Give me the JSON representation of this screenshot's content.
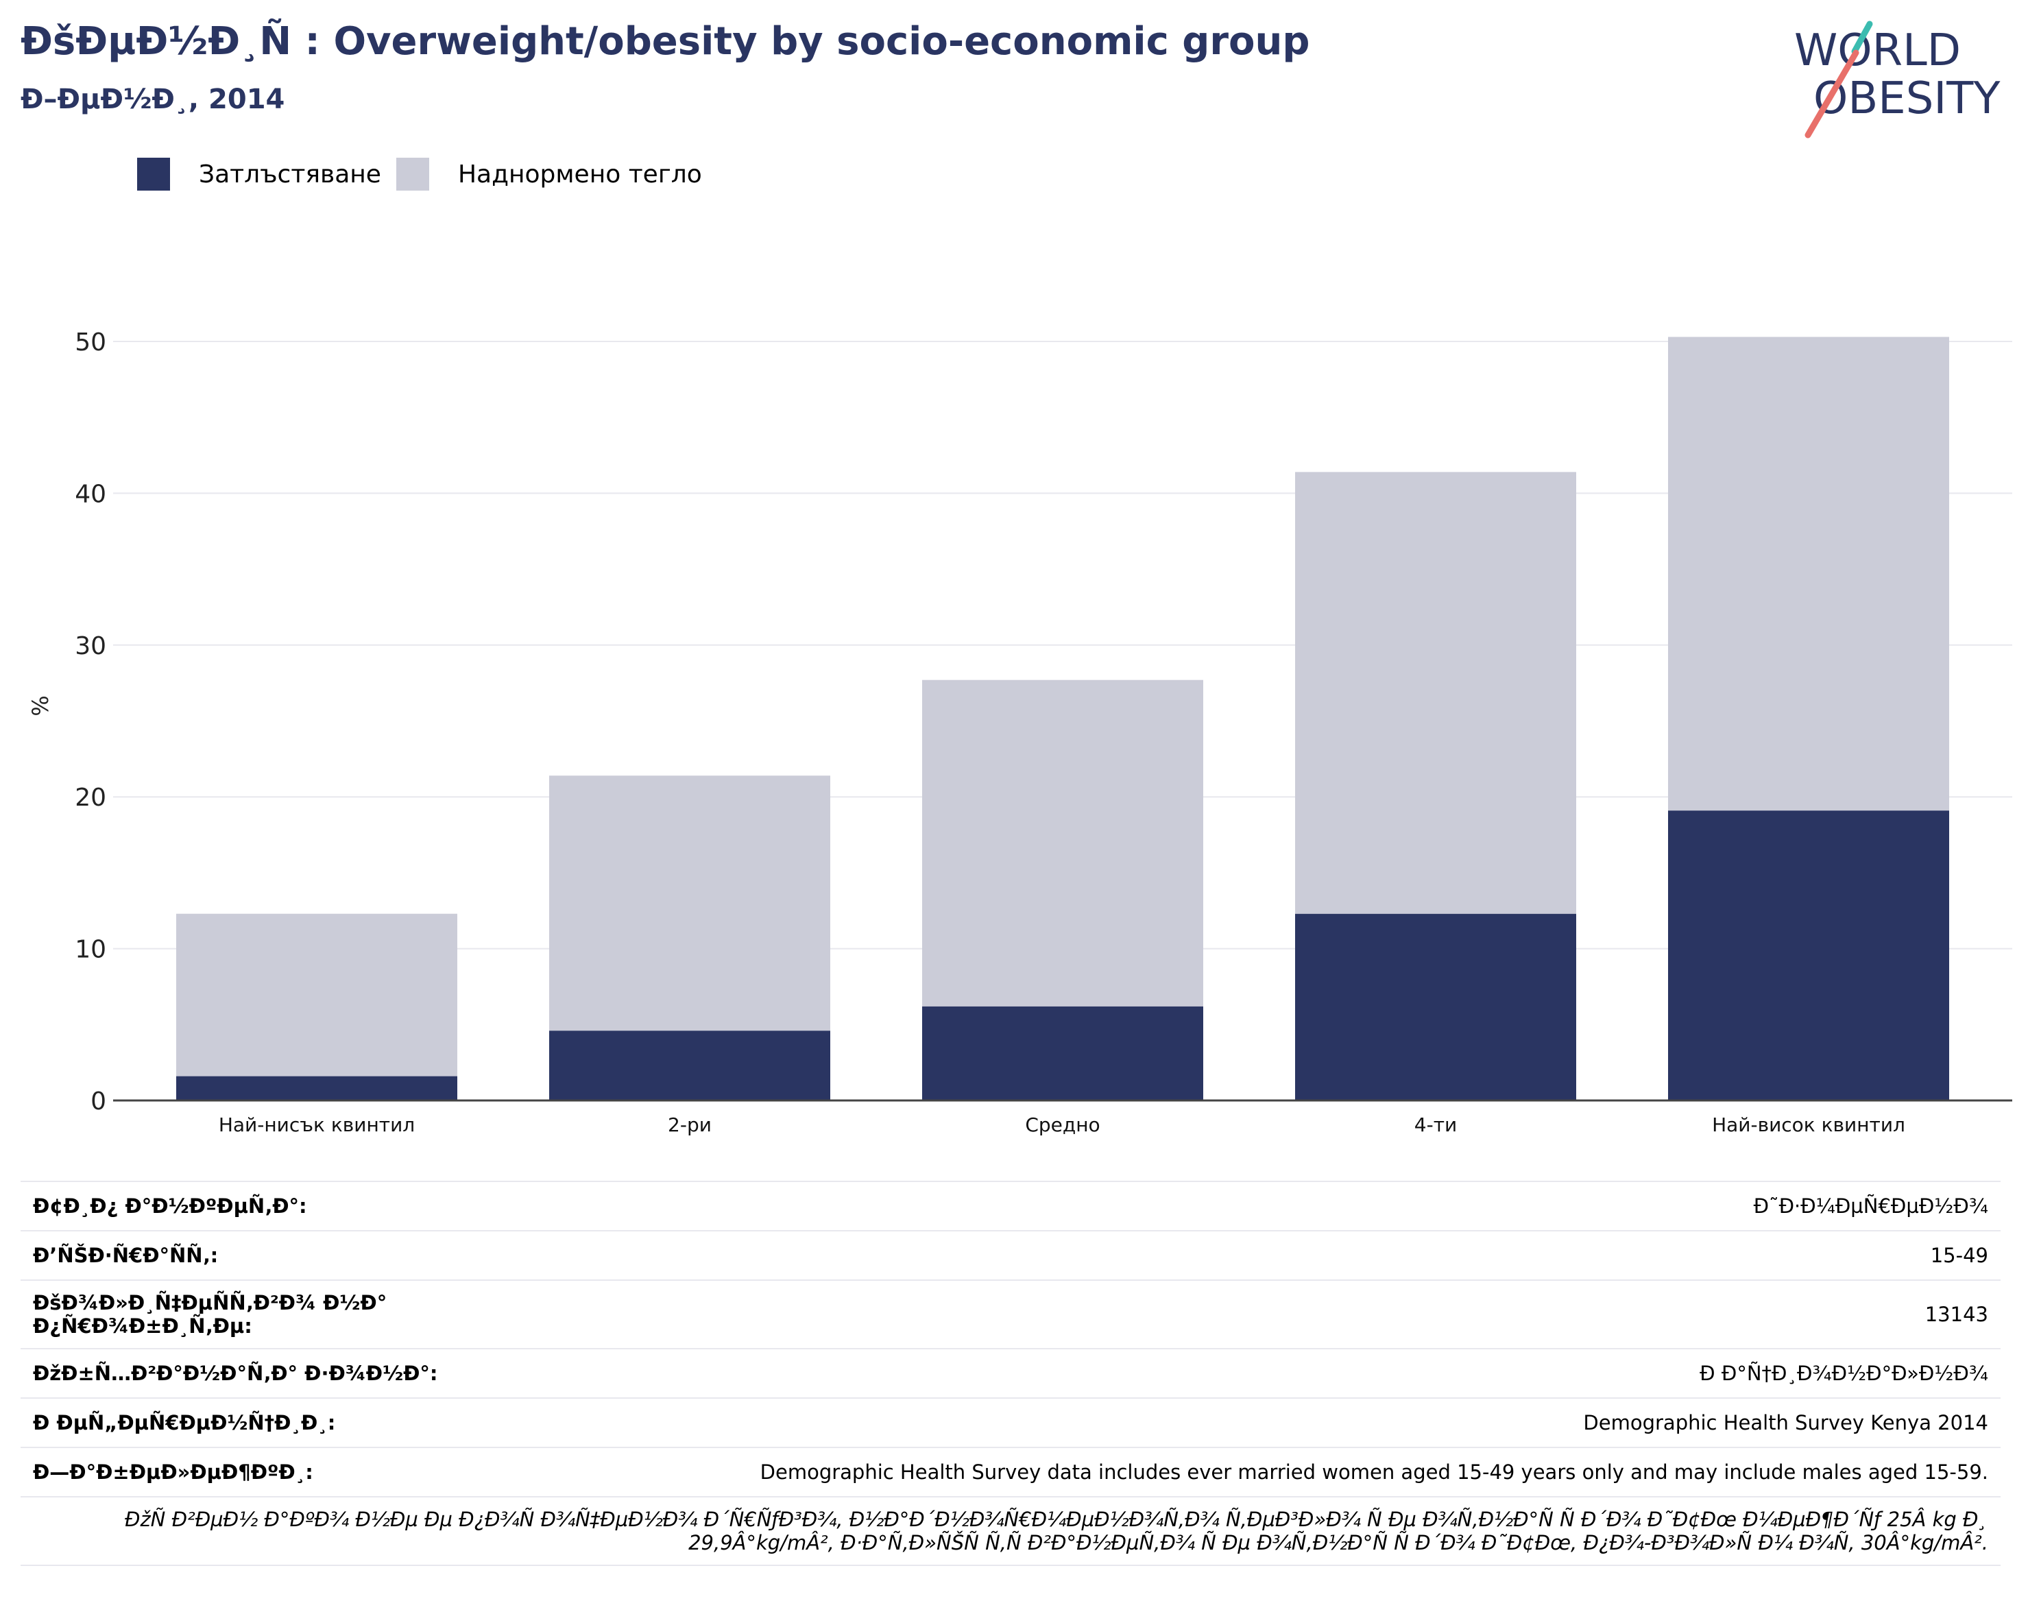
{
  "header": {
    "title": "ÐšÐµÐ½Ð¸Ñ : Overweight/obesity by socio-economic group",
    "subtitle": "Ð–ÐµÐ½Ð¸, 2014"
  },
  "logo": {
    "line1": "WORLD",
    "line2": "OBESITY"
  },
  "colors": {
    "obesity": "#2a3562",
    "overweight": "#cbccd8",
    "title": "#2a3562",
    "logo_teal": "#3bbcb0",
    "logo_red": "#e8706a"
  },
  "chart_data": {
    "type": "bar",
    "stacked": true,
    "categories": [
      "Най-нисък квинтил",
      "2-ри",
      "Средно",
      "4-ти",
      "Най-висок квинтил"
    ],
    "series": [
      {
        "name": "Затлъстяване",
        "values": [
          1.6,
          4.6,
          6.2,
          12.3,
          19.1
        ]
      },
      {
        "name": "Наднормено тегло",
        "values": [
          10.7,
          16.8,
          21.5,
          29.1,
          31.2
        ]
      }
    ],
    "ylabel": "%",
    "ylim": [
      0,
      52
    ],
    "yticks": [
      0,
      10,
      20,
      30,
      40,
      50
    ],
    "grid": true,
    "legend": "top-left"
  },
  "info": [
    {
      "key": "Ð¢Ð¸Ð¿ Ð°Ð½ÐºÐµÑ‚Ð°:",
      "value": "Ð˜Ð·Ð¼ÐµÑ€ÐµÐ½Ð¾"
    },
    {
      "key": "Ð’ÑŠÐ·Ñ€Ð°ÑÑ‚:",
      "value": "15-49"
    },
    {
      "key": "ÐšÐ¾Ð»Ð¸Ñ‡ÐµÑÑ‚Ð²Ð¾ Ð½Ð° Ð¿Ñ€Ð¾Ð±Ð¸Ñ‚Ðµ:",
      "value": "13143"
    },
    {
      "key": "ÐžÐ±Ñ…Ð²Ð°Ð½Ð°Ñ‚Ð° Ð·Ð¾Ð½Ð°:",
      "value": "Ð Ð°Ñ†Ð¸Ð¾Ð½Ð°Ð»Ð½Ð¾"
    },
    {
      "key": "Ð ÐµÑ„ÐµÑ€ÐµÐ½Ñ†Ð¸Ð¸:",
      "value": "Demographic Health Survey Kenya 2014"
    },
    {
      "key": "Ð—Ð°Ð±ÐµÐ»ÐµÐ¶ÐºÐ¸:",
      "value": "Demographic Health Survey data includes ever married women aged 15-49 years only and may include males aged 15-59."
    }
  ],
  "footnote": "ÐžÑ Ð²ÐµÐ½ Ð°ÐºÐ¾ Ð½Ðµ Ðµ Ð¿Ð¾Ñ Ð¾Ñ‡ÐµÐ½Ð¾ Ð´Ñ€ÑƒÐ³Ð¾, Ð½Ð°Ð´Ð½Ð¾Ñ€Ð¼ÐµÐ½Ð¾Ñ‚Ð¾ Ñ‚ÐµÐ³Ð»Ð¾ Ñ Ðµ Ð¾Ñ‚Ð½Ð°Ñ Ñ Ð´Ð¾ Ð˜Ð¢Ðœ Ð¼ÐµÐ¶Ð´Ñƒ 25Â kg Ð¸ 29,9Â°kg/mÂ², Ð·Ð°Ñ‚Ð»ÑŠÑ Ñ‚Ñ Ð²Ð°Ð½ÐµÑ‚Ð¾ Ñ Ðµ Ð¾Ñ‚Ð½Ð°Ñ Ñ Ð´Ð¾ Ð˜Ð¢Ðœ, Ð¿Ð¾-Ð³Ð¾Ð»Ñ Ð¼ Ð¾Ñ‚ 30Â°kg/mÂ²."
}
